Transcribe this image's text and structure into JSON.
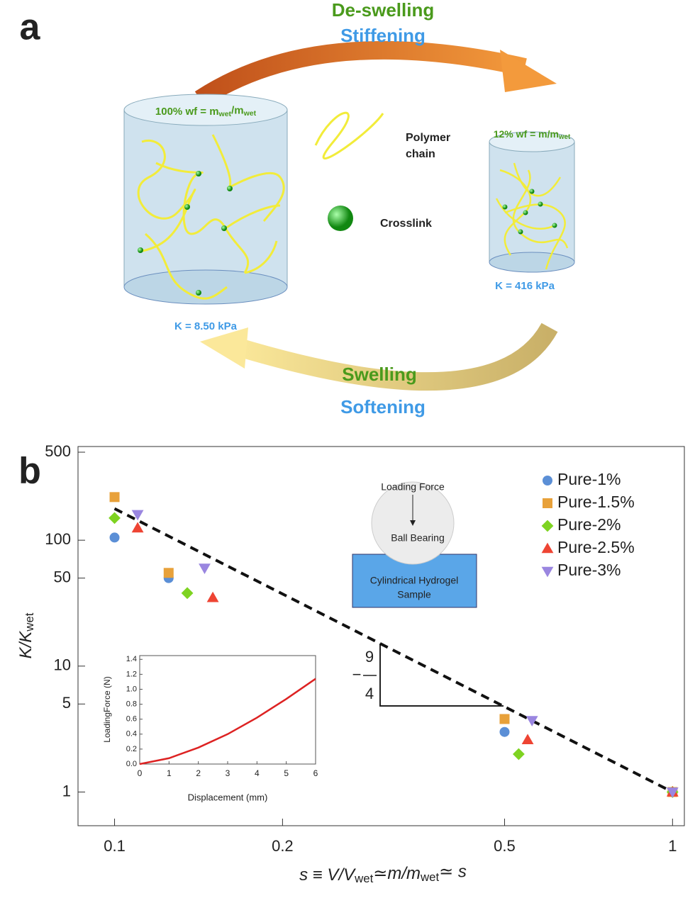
{
  "diagram": {
    "panel_a": "a",
    "panel_b": "b",
    "top_1": "De-swelling",
    "top_2": "Stiffening",
    "left_wf": [
      "100% wf = m",
      "wet",
      "/m",
      "wet"
    ],
    "right_wf": [
      "12% wf = m/m",
      "wet"
    ],
    "polymer_1": "Polymer",
    "polymer_2": "chain",
    "crosslink": "Crosslink",
    "left_k": "K = 8.50 kPa",
    "right_k": "K = 416 kPa",
    "bottom_1": "Swelling",
    "bottom_2": "Softening"
  },
  "chart_data": [
    {
      "type": "scatter",
      "ylabel": [
        "K/K",
        "wet"
      ],
      "xlabel": [
        "s ≡ V/V",
        "wet",
        "≃m/m",
        "wet",
        "≃ s"
      ],
      "xscale": "log",
      "yscale": "log",
      "xlim": [
        0.086,
        1.05
      ],
      "ylim": [
        0.54,
        500
      ],
      "xticks": [
        0.1,
        0.2,
        0.5,
        1
      ],
      "yticks": [
        1,
        5,
        10,
        50,
        100,
        500
      ],
      "legend": "upper right",
      "series": [
        {
          "name": "Pure-1%",
          "color": "#5b8fd6",
          "marker": "circle",
          "x": [
            0.1,
            0.125,
            0.5,
            1
          ],
          "values": [
            105,
            50,
            3,
            1
          ]
        },
        {
          "name": "Pure-1.5%",
          "color": "#e8a13a",
          "marker": "square",
          "x": [
            0.1,
            0.125,
            0.5,
            1
          ],
          "values": [
            220,
            55,
            3.8,
            1
          ]
        },
        {
          "name": "Pure-2%",
          "color": "#7ed321",
          "marker": "diamond",
          "x": [
            0.1,
            0.135,
            0.53,
            1
          ],
          "values": [
            150,
            38,
            2,
            1
          ]
        },
        {
          "name": "Pure-2.5%",
          "color": "#ee4433",
          "marker": "triangle-up",
          "x": [
            0.11,
            0.15,
            0.55,
            1
          ],
          "values": [
            125,
            35,
            2.6,
            1
          ]
        },
        {
          "name": "Pure-3%",
          "color": "#9a86e0",
          "marker": "triangle-down",
          "x": [
            0.11,
            0.145,
            0.56,
            1
          ],
          "values": [
            160,
            60,
            3.7,
            1
          ]
        }
      ],
      "fit_line": {
        "x": [
          0.1,
          1
        ],
        "values": [
          178,
          1
        ]
      },
      "slope_top": "9",
      "slope_sign": "−",
      "slope_bottom": "4",
      "schematic": {
        "force": "Loading Force",
        "ball": "Ball Bearing",
        "sample_1": "Cylindrical Hydrogel",
        "sample_2": "Sample"
      }
    },
    {
      "type": "line",
      "xlabel": "Displacement (mm)",
      "ylabel": "LoadingForce (N)",
      "xlim": [
        0,
        6
      ],
      "ylim": [
        0,
        1.45
      ],
      "xticks": [
        0,
        1,
        2,
        3,
        4,
        5,
        6
      ],
      "yticks": [
        {
          "value": 0,
          "label": "0.0"
        },
        0.2,
        0.4,
        0.6,
        0.8,
        {
          "value": 1,
          "label": "1.0"
        },
        1.2,
        1.4
      ],
      "x": [
        0,
        1,
        2,
        3,
        4,
        5,
        6
      ],
      "values": [
        0,
        0.078,
        0.22,
        0.4,
        0.62,
        0.87,
        1.14
      ],
      "color": "#dd2222"
    }
  ]
}
